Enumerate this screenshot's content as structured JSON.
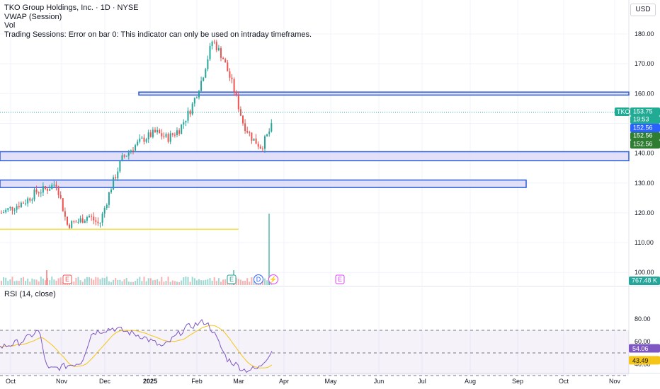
{
  "legend": {
    "title": "TKO Group Holdings, Inc. · 1D · NYSE",
    "vwap": "VWAP (Session)",
    "vol": "Vol",
    "sessions_error": "Trading Sessions: Error on bar 0: This indicator can only be used on intraday timeframes."
  },
  "currency": "USD",
  "rsi": {
    "label": "RSI (14, close)",
    "value_label": "54.06",
    "ma_label": "43.49",
    "ticks": [
      "80.00",
      "60.00",
      "40.00"
    ]
  },
  "colors": {
    "up": "#26a69a",
    "down": "#ef5350",
    "zone_fill": "#d6d2f5",
    "zone_border": "#2a5bd7",
    "support_line": "#f5e13c",
    "rsi_line": "#7e57c2",
    "rsi_ma": "#f5c518",
    "badge_green": "#22ab94"
  },
  "chart_data": {
    "type": "candlestick",
    "ylim": [
      97,
      185
    ],
    "ticks": [
      "180.00",
      "170.00",
      "160.00",
      "150.00",
      "140.00",
      "130.00",
      "120.00",
      "110.00",
      "100.00"
    ],
    "x_labels": [
      "Oct",
      "Nov",
      "Dec",
      "2025",
      "Feb",
      "Mar",
      "Apr",
      "May",
      "Jun",
      "Jul",
      "Aug",
      "Sep",
      "Oct",
      "Nov"
    ],
    "close_path": [
      [
        "Oct",
        120
      ],
      [
        "Oct",
        124
      ],
      [
        "Oct",
        127
      ],
      [
        "Oct",
        128
      ],
      [
        "Oct",
        130
      ],
      [
        "Nov",
        116
      ],
      [
        "Nov",
        117
      ],
      [
        "Nov",
        119
      ],
      [
        "Nov",
        116
      ],
      [
        "Dec",
        128
      ],
      [
        "Dec",
        138
      ],
      [
        "Dec",
        142
      ],
      [
        "Dec",
        145
      ],
      [
        "2025",
        147
      ],
      [
        "2025",
        145
      ],
      [
        "2025",
        148
      ],
      [
        "2025",
        155
      ],
      [
        "Feb",
        165
      ],
      [
        "Feb",
        178
      ],
      [
        "Feb",
        172
      ],
      [
        "Feb",
        162
      ],
      [
        "Mar",
        150
      ],
      [
        "Mar",
        145
      ],
      [
        "Mar",
        142
      ],
      [
        "Mar",
        148
      ],
      [
        "Mar",
        153.75
      ]
    ],
    "zones": [
      {
        "low": 159.5,
        "high": 160.5,
        "label": "upper"
      },
      {
        "low": 137.5,
        "high": 140.5,
        "label": "middle"
      },
      {
        "low": 128.5,
        "high": 131,
        "label": "lower"
      }
    ],
    "support_line": 114.5,
    "price_badges": {
      "symbol": "TKO",
      "price": "153.75",
      "countdown": "19:53",
      "vwap": "152.56",
      "extra": [
        "152.56",
        "152.56"
      ],
      "volume": "767.48 K"
    },
    "event_markers": [
      {
        "date": "Oct",
        "letter": "E"
      },
      {
        "date": "Feb",
        "letter": "E"
      },
      {
        "date": "Mar",
        "letter": "D"
      },
      {
        "date": "Mar",
        "letter": "⚡"
      },
      {
        "date": "May",
        "letter": "E"
      }
    ]
  }
}
